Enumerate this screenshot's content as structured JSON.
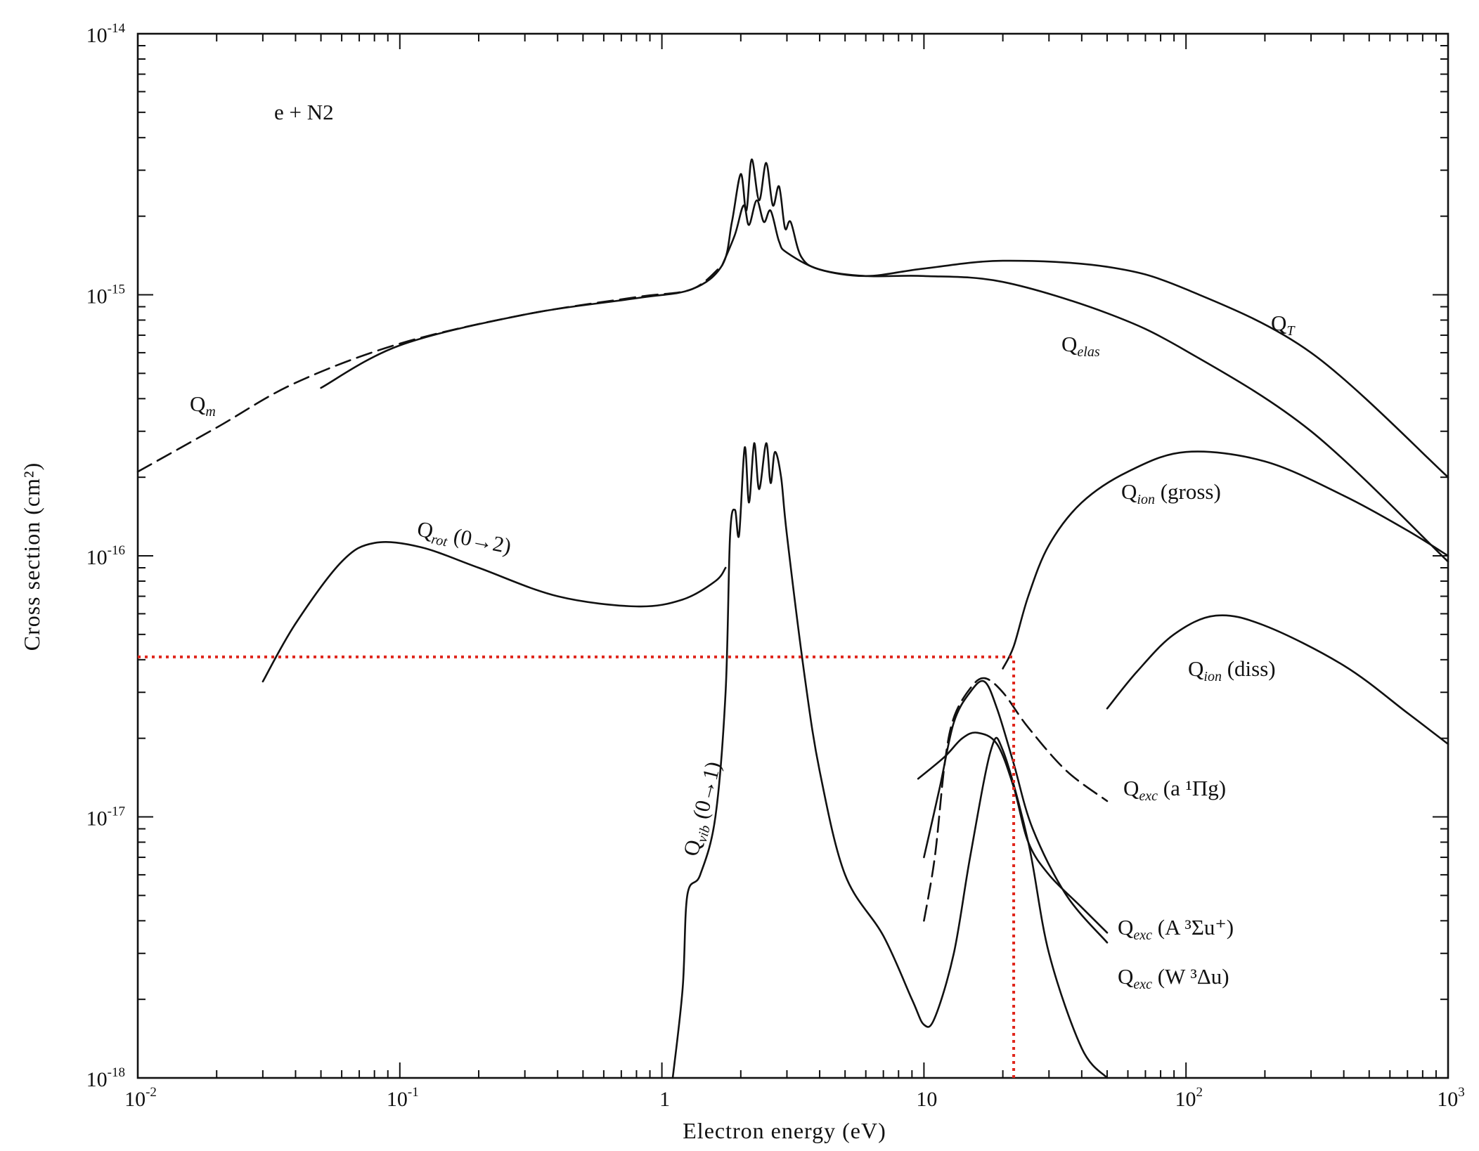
{
  "chart_data": {
    "type": "line",
    "title": "e + N2",
    "xlabel": "Electron energy (eV)",
    "ylabel": "Cross section (cm²)",
    "xscale": "log",
    "yscale": "log",
    "xlim": [
      0.01,
      1000
    ],
    "ylim": [
      1e-18,
      1e-14
    ],
    "grid": false,
    "legend": "none",
    "x_ticks": [
      {
        "base": "10",
        "exp": "-2"
      },
      {
        "base": "10",
        "exp": "-1"
      },
      {
        "base": "1",
        "exp": ""
      },
      {
        "base": "10",
        "exp": ""
      },
      {
        "base": "10",
        "exp": "2"
      },
      {
        "base": "10",
        "exp": "3"
      }
    ],
    "y_ticks": [
      {
        "base": "10",
        "exp": "-14"
      },
      {
        "base": "10",
        "exp": "-15"
      },
      {
        "base": "10",
        "exp": "-16"
      },
      {
        "base": "10",
        "exp": "-17"
      },
      {
        "base": "10",
        "exp": "-18"
      }
    ],
    "series": [
      {
        "name": "Q_m",
        "style": "dashed",
        "points": [
          [
            0.01,
            2.1e-16
          ],
          [
            0.02,
            3.1e-16
          ],
          [
            0.04,
            4.6e-16
          ],
          [
            0.1,
            6.5e-16
          ],
          [
            0.3,
            8.4e-16
          ],
          [
            0.8,
            9.8e-16
          ],
          [
            1.3,
            1.05e-15
          ],
          [
            1.7,
            1.3e-15
          ]
        ]
      },
      {
        "name": "Q_T",
        "style": "solid",
        "points": [
          [
            0.05,
            4.4e-16
          ],
          [
            0.1,
            6.4e-16
          ],
          [
            0.3,
            8.4e-16
          ],
          [
            0.8,
            9.7e-16
          ],
          [
            1.3,
            1.05e-15
          ],
          [
            1.7,
            1.3e-15
          ],
          [
            1.85,
            1.9e-15
          ],
          [
            2.0,
            2.9e-15
          ],
          [
            2.1,
            2.1e-15
          ],
          [
            2.2,
            3.3e-15
          ],
          [
            2.35,
            2.3e-15
          ],
          [
            2.5,
            3.2e-15
          ],
          [
            2.65,
            2.2e-15
          ],
          [
            2.8,
            2.6e-15
          ],
          [
            2.95,
            1.8e-15
          ],
          [
            3.1,
            1.9e-15
          ],
          [
            3.4,
            1.4e-15
          ],
          [
            4,
            1.25e-15
          ],
          [
            6,
            1.18e-15
          ],
          [
            10,
            1.26e-15
          ],
          [
            20,
            1.35e-15
          ],
          [
            50,
            1.28e-15
          ],
          [
            100,
            1.05e-15
          ],
          [
            300,
            6e-16
          ],
          [
            1000,
            2e-16
          ]
        ]
      },
      {
        "name": "Q_elas",
        "style": "solid",
        "points": [
          [
            1.7,
            1.3e-15
          ],
          [
            1.9,
            1.7e-15
          ],
          [
            2.05,
            2.2e-15
          ],
          [
            2.15,
            1.85e-15
          ],
          [
            2.3,
            2.3e-15
          ],
          [
            2.45,
            1.9e-15
          ],
          [
            2.6,
            2.1e-15
          ],
          [
            2.8,
            1.6e-15
          ],
          [
            3.0,
            1.45e-15
          ],
          [
            4,
            1.25e-15
          ],
          [
            6,
            1.18e-15
          ],
          [
            10,
            1.18e-15
          ],
          [
            20,
            1.12e-15
          ],
          [
            50,
            8.5e-16
          ],
          [
            100,
            6.1e-16
          ],
          [
            300,
            3e-16
          ],
          [
            1000,
            9.5e-17
          ]
        ]
      },
      {
        "name": "Q_rot (0→2)",
        "style": "solid",
        "points": [
          [
            0.03,
            3.3e-17
          ],
          [
            0.04,
            5.5e-17
          ],
          [
            0.06,
            9.5e-17
          ],
          [
            0.08,
            1.12e-16
          ],
          [
            0.12,
            1.08e-16
          ],
          [
            0.2,
            9e-17
          ],
          [
            0.4,
            7e-17
          ],
          [
            0.8,
            6.4e-17
          ],
          [
            1.2,
            6.8e-17
          ],
          [
            1.6,
            8e-17
          ],
          [
            1.75,
            9e-17
          ]
        ]
      },
      {
        "name": "Q_vib (0→1)",
        "style": "solid",
        "points": [
          [
            1.1,
            1e-18
          ],
          [
            1.2,
            2.2e-18
          ],
          [
            1.25,
            5e-18
          ],
          [
            1.4,
            6e-18
          ],
          [
            1.6,
            1e-17
          ],
          [
            1.75,
            3e-17
          ],
          [
            1.82,
            1.2e-16
          ],
          [
            1.9,
            1.5e-16
          ],
          [
            1.97,
            1.2e-16
          ],
          [
            2.07,
            2.6e-16
          ],
          [
            2.15,
            1.6e-16
          ],
          [
            2.25,
            2.7e-16
          ],
          [
            2.35,
            1.8e-16
          ],
          [
            2.5,
            2.7e-16
          ],
          [
            2.6,
            1.9e-16
          ],
          [
            2.7,
            2.5e-16
          ],
          [
            2.85,
            2e-16
          ],
          [
            3.0,
            1.2e-16
          ],
          [
            3.5,
            3.5e-17
          ],
          [
            4,
            1.5e-17
          ],
          [
            5,
            6e-18
          ],
          [
            7,
            3.5e-18
          ],
          [
            9,
            2e-18
          ],
          [
            10,
            1.6e-18
          ],
          [
            11,
            1.7e-18
          ],
          [
            13,
            3e-18
          ],
          [
            15,
            7e-18
          ],
          [
            18,
            1.8e-17
          ],
          [
            20,
            1.8e-17
          ],
          [
            25,
            8e-18
          ],
          [
            30,
            3e-18
          ],
          [
            40,
            1.3e-18
          ],
          [
            50,
            1e-18
          ]
        ]
      },
      {
        "name": "Q_ion (gross)",
        "style": "solid",
        "points": [
          [
            20,
            3.7e-17
          ],
          [
            22,
            4.5e-17
          ],
          [
            25,
            7e-17
          ],
          [
            30,
            1.1e-16
          ],
          [
            40,
            1.6e-16
          ],
          [
            60,
            2.1e-16
          ],
          [
            100,
            2.5e-16
          ],
          [
            200,
            2.3e-16
          ],
          [
            400,
            1.7e-16
          ],
          [
            700,
            1.25e-16
          ],
          [
            1000,
            1e-16
          ]
        ]
      },
      {
        "name": "Q_ion (diss)",
        "style": "solid",
        "points": [
          [
            50,
            2.6e-17
          ],
          [
            65,
            3.6e-17
          ],
          [
            90,
            5e-17
          ],
          [
            130,
            5.9e-17
          ],
          [
            200,
            5.4e-17
          ],
          [
            400,
            3.8e-17
          ],
          [
            700,
            2.5e-17
          ],
          [
            1000,
            1.9e-17
          ]
        ]
      },
      {
        "name": "Q_exc (a ¹Πg)",
        "style": "dashed",
        "points": [
          [
            10,
            4e-18
          ],
          [
            11,
            7e-18
          ],
          [
            12,
            1.6e-17
          ],
          [
            13,
            2.4e-17
          ],
          [
            15,
            3.1e-17
          ],
          [
            17,
            3.4e-17
          ],
          [
            20,
            3e-17
          ],
          [
            25,
            2.2e-17
          ],
          [
            35,
            1.5e-17
          ],
          [
            50,
            1.15e-17
          ]
        ]
      },
      {
        "name": "Q_exc (a ¹Πg) solid",
        "style": "solid",
        "points": [
          [
            10,
            7e-18
          ],
          [
            11.5,
            1.3e-17
          ],
          [
            13,
            2.3e-17
          ],
          [
            15,
            3e-17
          ],
          [
            17,
            3.3e-17
          ],
          [
            19,
            2.6e-17
          ],
          [
            22,
            1.6e-17
          ],
          [
            26,
            9e-18
          ],
          [
            35,
            5e-18
          ],
          [
            50,
            3.3e-18
          ]
        ]
      },
      {
        "name": "Q_exc (A ³Σu⁺)",
        "style": "solid",
        "points": [
          [
            9.5,
            1.4e-17
          ],
          [
            12,
            1.7e-17
          ],
          [
            14,
            2e-17
          ],
          [
            16,
            2.1e-17
          ],
          [
            19,
            1.9e-17
          ],
          [
            22,
            1.3e-17
          ],
          [
            25,
            8e-18
          ],
          [
            30,
            6e-18
          ],
          [
            40,
            4.5e-18
          ],
          [
            50,
            3.6e-18
          ]
        ]
      }
    ],
    "reference_lines": [
      {
        "type": "horizontal",
        "y": 4.1e-17,
        "x_from": 0.01,
        "x_to": 22,
        "color": "#e0261c"
      },
      {
        "type": "vertical",
        "x": 22,
        "y_from": 1e-18,
        "y_to": 4.1e-17,
        "color": "#e0261c"
      }
    ],
    "annotations": {
      "system": "e + N2",
      "q_m": {
        "main": "Q",
        "sub": "m"
      },
      "q_t": {
        "main": "Q",
        "sub": "T"
      },
      "q_elas": {
        "main": "Q",
        "sub": "elas"
      },
      "q_rot": {
        "main": "Q",
        "sub": "rot",
        "suffix": "(0→2)"
      },
      "q_vib": {
        "main": "Q",
        "sub": "vib",
        "suffix": "(0→1)"
      },
      "q_ion_gross": {
        "main": "Q",
        "sub": "ion",
        "suffix": "(gross)"
      },
      "q_ion_diss": {
        "main": "Q",
        "sub": "ion",
        "suffix": "(diss)"
      },
      "q_exc_a": {
        "main": "Q",
        "sub": "exc",
        "suffix": "(a ¹Πg)"
      },
      "q_exc_A": {
        "main": "Q",
        "sub": "exc",
        "suffix": "(A ³Σu⁺)"
      },
      "q_exc_W": {
        "main": "Q",
        "sub": "exc",
        "suffix": "(W ³Δu)"
      }
    }
  }
}
